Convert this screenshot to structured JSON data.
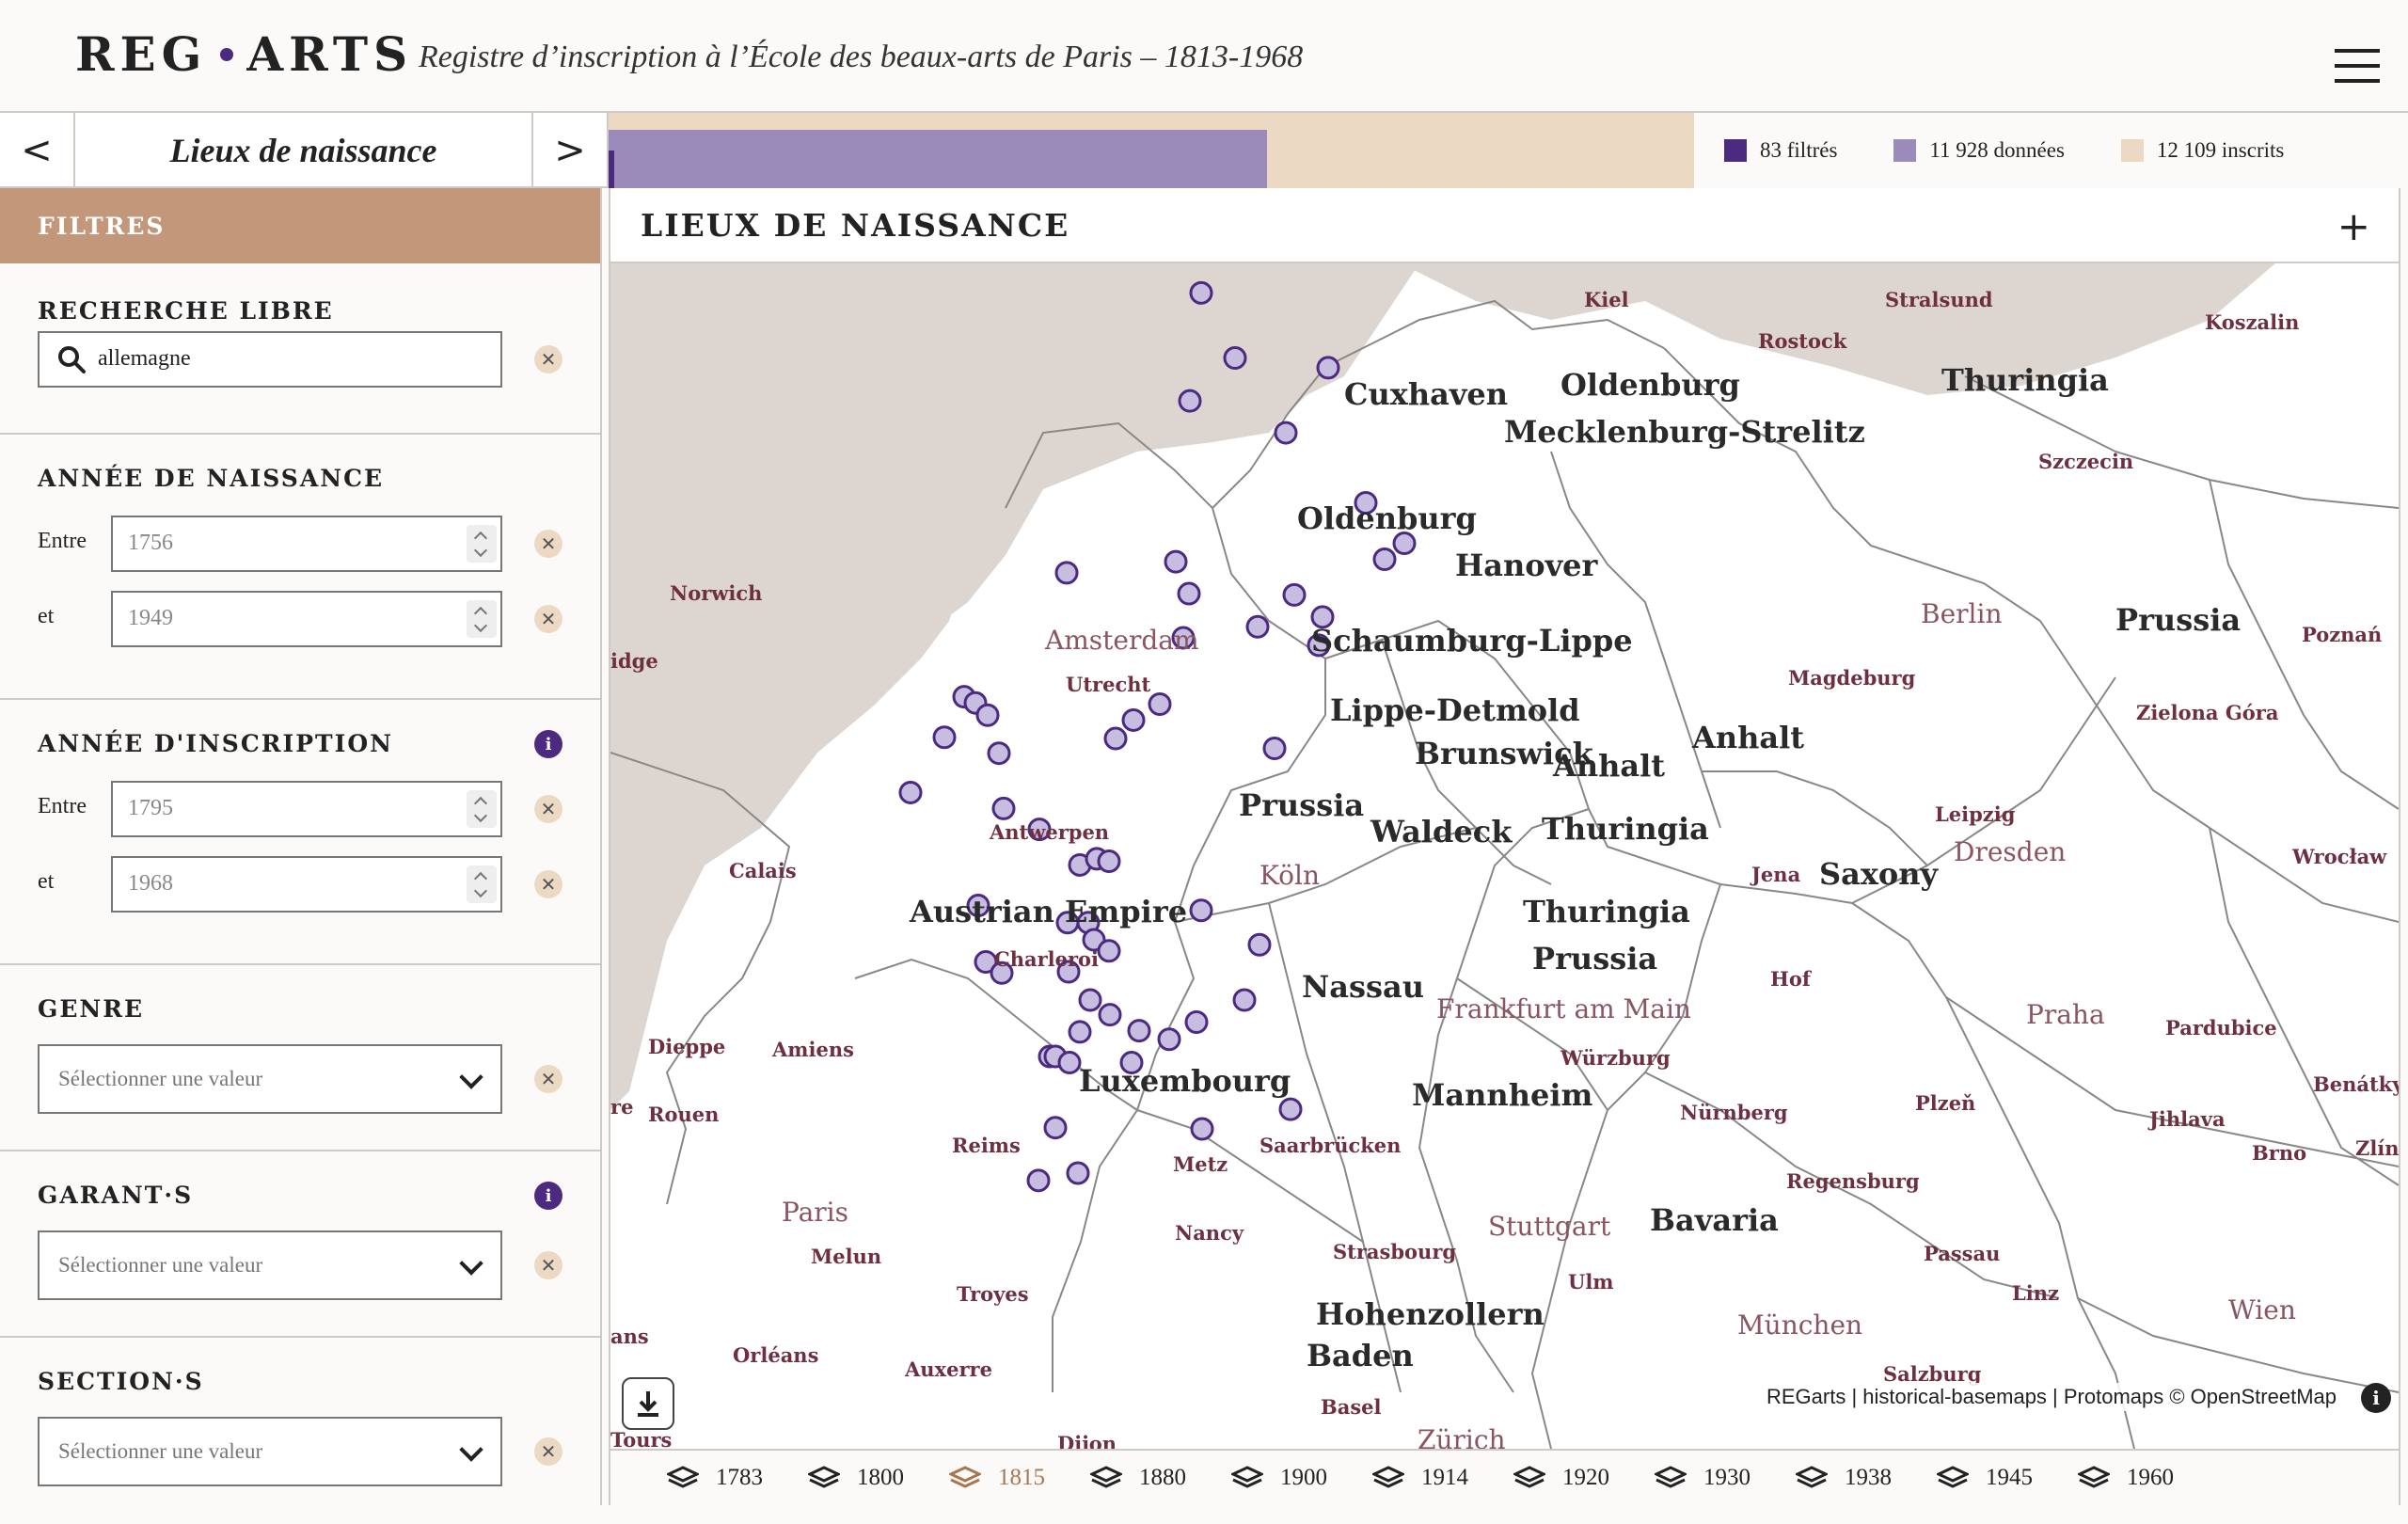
{
  "header": {
    "logo_left": "REG",
    "logo_right": "ARTS",
    "subtitle": "Registre d’inscription à l’École des beaux-arts de Paris – 1813-1968"
  },
  "nav": {
    "prev": "<",
    "title": "Lieux de naissance",
    "next": ">"
  },
  "counts": {
    "filtered": 83,
    "data": 11928,
    "total": 12109,
    "filtered_label": "83 filtrés",
    "data_label": "11 928 données",
    "total_label": "12 109 inscrits"
  },
  "colors": {
    "filtered": "#4b2a80",
    "data": "#9b8bbb",
    "total": "#ecd9c4",
    "accent": "#c3987a"
  },
  "sidebar": {
    "header": "FILTRES",
    "search": {
      "title": "RECHERCHE LIBRE",
      "value": "allemagne"
    },
    "birth_year": {
      "title": "ANNÉE DE NAISSANCE",
      "from_label": "Entre",
      "from": "1756",
      "to_label": "et",
      "to": "1949"
    },
    "reg_year": {
      "title": "ANNÉE D'INSCRIPTION",
      "from_label": "Entre",
      "from": "1795",
      "to_label": "et",
      "to": "1968"
    },
    "genre": {
      "title": "GENRE",
      "placeholder": "Sélectionner une valeur"
    },
    "garants": {
      "title": "GARANT·S",
      "placeholder": "Sélectionner une valeur"
    },
    "sections": {
      "title": "SECTION·S",
      "placeholder": "Sélectionner une valeur"
    }
  },
  "panel": {
    "title": "LIEUX DE NAISSANCE",
    "expand": "+",
    "info": "i"
  },
  "map": {
    "attribution": "REGarts | historical-basemaps | Protomaps © OpenStreetMap",
    "region_labels": [
      "Cuxhaven",
      "Oldenburg",
      "Mecklenburg-Strelitz",
      "Thuringia",
      "Oldenburg",
      "Hanover",
      "Schaumburg-Lippe",
      "Lippe-Detmold",
      "Brunswick",
      "Anhalt",
      "Anhalt",
      "Prussia",
      "Waldeck",
      "Thuringia",
      "Thuringia",
      "Prussia",
      "Austrian Empire",
      "Saxony",
      "Nassau",
      "Luxembourg",
      "Mannheim",
      "Bavaria",
      "Hohenzollern",
      "Baden",
      "Prussia"
    ],
    "city_labels_large": [
      "Amsterdam",
      "Berlin",
      "Köln",
      "Frankfurt am Main",
      "Paris",
      "Praha",
      "Wien",
      "München",
      "Stuttgart",
      "Dresden",
      "Zürich"
    ],
    "city_labels_small": [
      "Kiel",
      "Stralsund",
      "Rostock",
      "Koszalin",
      "Szczecin",
      "Norwich",
      "Utrecht",
      "Magdeburg",
      "Poznań",
      "Zielona Góra",
      "Leipzig",
      "Wrocław",
      "Antwerpen",
      "Calais",
      "Jena",
      "Charleroi",
      "Hof",
      "Pardubice",
      "Dieppe",
      "Amiens",
      "Würzburg",
      "Plzeň",
      "Benátky",
      "Rouen",
      "Reims",
      "Nürnberg",
      "Jihlava",
      "Metz",
      "Saarbrücken",
      "Brno",
      "Zlín",
      "Regensburg",
      "Nancy",
      "Melun",
      "Strasbourg",
      "Passau",
      "Troyes",
      "Ulm",
      "Linz",
      "Orléans",
      "Auxerre",
      "Salzburg",
      "Basel",
      "Tours",
      "Dijon",
      "idge",
      "re",
      "ans"
    ]
  },
  "timeline": [
    "1783",
    "1800",
    "1815",
    "1880",
    "1900",
    "1914",
    "1920",
    "1930",
    "1938",
    "1945",
    "1960"
  ],
  "timeline_active": "1815"
}
